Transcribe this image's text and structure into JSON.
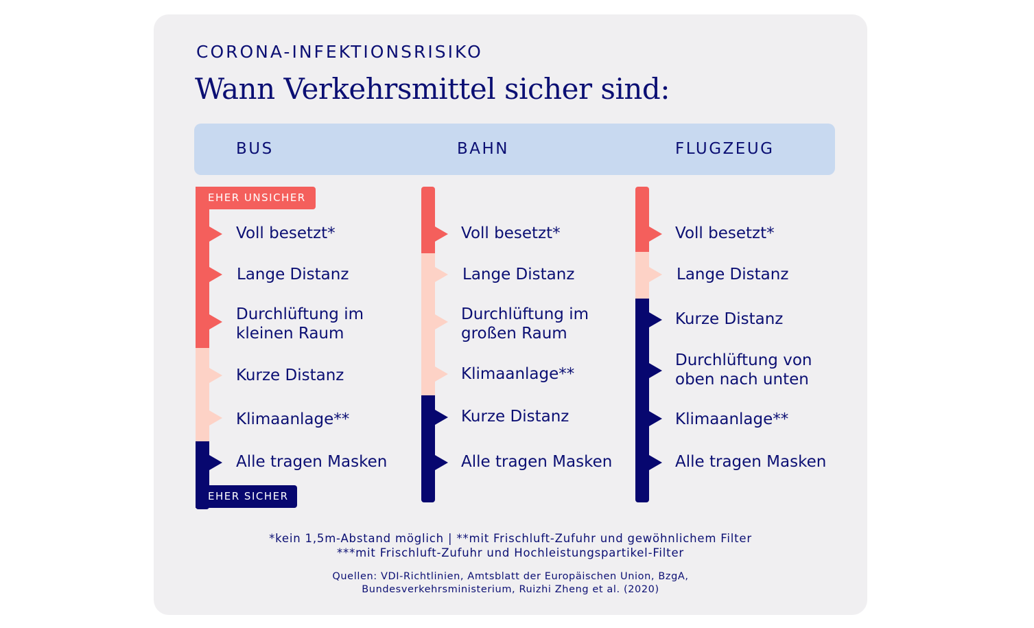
{
  "header": {
    "kicker": "CORONA-INFEKTIONSRISIKO",
    "title": "Wann Verkehrsmittel sicher sind:"
  },
  "labels": {
    "unsafe": "EHER UNSICHER",
    "safe": "EHER SICHER"
  },
  "colors": {
    "high": "#f45f5c",
    "medium": "#fdd2c6",
    "low": "#07076f",
    "header_band": "#c8d9f0",
    "card": "#f0eff1"
  },
  "columns": [
    {
      "name": "BUS",
      "items": [
        {
          "text": "Voll besetzt*",
          "level": "high"
        },
        {
          "text": "Lange Distanz",
          "level": "high"
        },
        {
          "text": "Durchlüftung im\nkleinen Raum",
          "level": "high"
        },
        {
          "text": "Kurze Distanz",
          "level": "medium"
        },
        {
          "text": "Klimaanlage**",
          "level": "medium"
        },
        {
          "text": "Alle tragen Masken",
          "level": "low"
        }
      ]
    },
    {
      "name": "BAHN",
      "items": [
        {
          "text": "Voll besetzt*",
          "level": "high"
        },
        {
          "text": "Lange Distanz",
          "level": "medium"
        },
        {
          "text": "Durchlüftung im\ngroßen Raum",
          "level": "medium"
        },
        {
          "text": "Klimaanlage**",
          "level": "medium"
        },
        {
          "text": "Kurze Distanz",
          "level": "low"
        },
        {
          "text": "Alle tragen Masken",
          "level": "low"
        }
      ]
    },
    {
      "name": "FLUGZEUG",
      "items": [
        {
          "text": "Voll besetzt*",
          "level": "high"
        },
        {
          "text": "Lange Distanz",
          "level": "medium"
        },
        {
          "text": "Kurze Distanz",
          "level": "low"
        },
        {
          "text": "Durchlüftung von\noben nach unten",
          "level": "low"
        },
        {
          "text": "Klimaanlage**",
          "level": "low"
        },
        {
          "text": "Alle tragen Masken",
          "level": "low"
        }
      ]
    }
  ],
  "footnotes": {
    "line1": "*kein 1,5m-Abstand möglich  |  **mit Frischluft-Zufuhr und gewöhnlichem Filter",
    "line2": "***mit Frischluft-Zufuhr und Hochleistungspartikel-Filter",
    "sources1": "Quellen: VDI-Richtlinien, Amtsblatt der Europäischen Union, BzgA,",
    "sources2": "Bundesverkehrsministerium, Ruizhi Zheng et al. (2020)"
  }
}
